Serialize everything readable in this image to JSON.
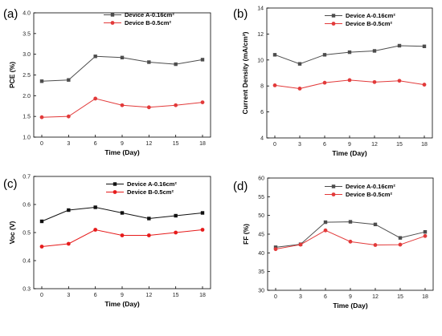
{
  "colors": {
    "device_a": "#4d4d4d",
    "device_b": "#e23a3a",
    "device_a_c": "#111111",
    "device_b_c": "#e61b1b"
  },
  "chart_data": [
    {
      "panel": "(a)",
      "type": "line",
      "xlabel": "Time (Day)",
      "ylabel": "PCE (%)",
      "x": [
        0,
        3,
        6,
        9,
        12,
        15,
        18
      ],
      "ylim": [
        1.0,
        4.0
      ],
      "yticks": [
        "1.0",
        "1.5",
        "2.0",
        "2.5",
        "3.0",
        "3.5",
        "4.0"
      ],
      "marker": "square",
      "series": [
        {
          "name": "Device A-0.16cm²",
          "color": "#4d4d4d",
          "values": [
            2.35,
            2.38,
            2.95,
            2.92,
            2.81,
            2.76,
            2.87
          ]
        },
        {
          "name": "Device B-0.5cm²",
          "color": "#e23a3a",
          "values": [
            1.48,
            1.5,
            1.93,
            1.77,
            1.72,
            1.77,
            1.84
          ]
        }
      ]
    },
    {
      "panel": "(b)",
      "type": "line",
      "xlabel": "Time (Day)",
      "ylabel": "Current Density (mA/cm²)",
      "x": [
        0,
        3,
        6,
        9,
        12,
        15,
        18
      ],
      "ylim": [
        4,
        14
      ],
      "yticks": [
        "4",
        "6",
        "8",
        "10",
        "12",
        "14"
      ],
      "marker": "square",
      "series": [
        {
          "name": "Device A-0.16cm²",
          "color": "#4d4d4d",
          "values": [
            10.4,
            9.7,
            10.4,
            10.6,
            10.7,
            11.1,
            11.05
          ]
        },
        {
          "name": "Device B-0.5cm²",
          "color": "#e23a3a",
          "values": [
            8.05,
            7.8,
            8.25,
            8.45,
            8.3,
            8.4,
            8.1
          ]
        }
      ]
    },
    {
      "panel": "(c)",
      "type": "line",
      "xlabel": "Time (Day)",
      "ylabel": "Voc (V)",
      "x": [
        0,
        3,
        6,
        9,
        12,
        15,
        18
      ],
      "ylim": [
        0.3,
        0.7
      ],
      "yticks": [
        "0.3",
        "0.4",
        "0.5",
        "0.6",
        "0.7"
      ],
      "marker": "square",
      "series": [
        {
          "name": "Device A-0.16cm²",
          "color": "#111111",
          "values": [
            0.54,
            0.58,
            0.59,
            0.57,
            0.55,
            0.56,
            0.57
          ]
        },
        {
          "name": "Device B-0.5cm²",
          "color": "#e61b1b",
          "values": [
            0.45,
            0.46,
            0.51,
            0.49,
            0.49,
            0.5,
            0.51
          ]
        }
      ]
    },
    {
      "panel": "(d)",
      "type": "line",
      "xlabel": "Time (Day)",
      "ylabel": "FF (%)",
      "x": [
        0,
        3,
        6,
        9,
        12,
        15,
        18
      ],
      "ylim": [
        30,
        60
      ],
      "yticks": [
        "30",
        "35",
        "40",
        "45",
        "50",
        "55",
        "60"
      ],
      "marker": "square",
      "series": [
        {
          "name": "Device A-0.16cm²",
          "color": "#4d4d4d",
          "values": [
            41.5,
            42.3,
            48.2,
            48.3,
            47.6,
            44.0,
            45.6
          ]
        },
        {
          "name": "Device B-0.5cm²",
          "color": "#e23a3a",
          "values": [
            41.0,
            42.2,
            46.0,
            43.0,
            42.1,
            42.2,
            44.5
          ]
        }
      ]
    }
  ]
}
